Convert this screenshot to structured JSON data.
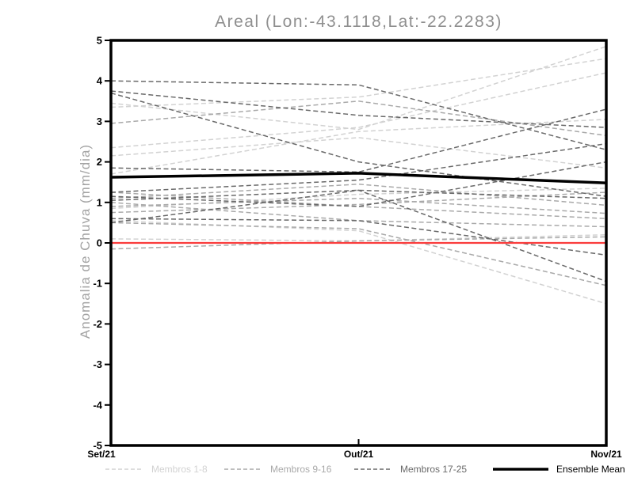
{
  "title": "Areal (Lon:-43.1118,Lat:-22.2283)",
  "chart_data": {
    "type": "line",
    "title": "Areal (Lon:-43.1118,Lat:-22.2283)",
    "xlabel": "",
    "ylabel": "Anomalia de Chuva (mm/dia)",
    "x_categories": [
      "Set/21",
      "Out/21",
      "Nov/21"
    ],
    "ylim": [
      -5,
      5
    ],
    "y_ticks": [
      5,
      4,
      3,
      2,
      1,
      0,
      -1,
      -2,
      -3,
      -4,
      -5
    ],
    "grid": false,
    "legend_position": "bottom",
    "zero_line": {
      "value": 0,
      "color": "#fa3c3c"
    },
    "groups": [
      {
        "name": "Membros 1-8",
        "color": "#d2d2d2",
        "style": "dashed",
        "members": [
          [
            3.45,
            2.8,
            4.85
          ],
          [
            3.35,
            3.6,
            4.55
          ],
          [
            2.35,
            2.85,
            4.2
          ],
          [
            2.15,
            2.6,
            1.85
          ],
          [
            1.7,
            2.75,
            3.05
          ],
          [
            0.85,
            1.2,
            1.35
          ],
          [
            0.55,
            0.3,
            -1.5
          ],
          [
            0.1,
            0.05,
            0.2
          ]
        ]
      },
      {
        "name": "Membros 9-16",
        "color": "#a9a9a9",
        "style": "dashed",
        "members": [
          [
            2.95,
            3.5,
            2.65
          ],
          [
            1.25,
            0.9,
            0.6
          ],
          [
            1.1,
            1.45,
            0.93
          ],
          [
            1.0,
            0.55,
            0.4
          ],
          [
            0.9,
            1.1,
            0.73
          ],
          [
            0.75,
            0.95,
            1.25
          ],
          [
            0.5,
            0.35,
            -1.05
          ],
          [
            -0.15,
            0.05,
            0.15
          ]
        ]
      },
      {
        "name": "Membros 17-25",
        "color": "#696969",
        "style": "dashed",
        "members": [
          [
            4.0,
            3.9,
            2.3
          ],
          [
            3.75,
            3.15,
            2.85
          ],
          [
            3.7,
            2.0,
            1.15
          ],
          [
            1.85,
            1.75,
            3.3
          ],
          [
            1.25,
            1.55,
            2.45
          ],
          [
            1.15,
            0.9,
            2.0
          ],
          [
            1.05,
            1.3,
            1.1
          ],
          [
            0.6,
            0.55,
            -0.3
          ],
          [
            0.5,
            1.3,
            -0.95
          ]
        ]
      }
    ],
    "ensemble_mean": {
      "name": "Ensemble Mean",
      "color": "#000000",
      "style": "solid",
      "values": [
        1.62,
        1.72,
        1.48
      ]
    }
  }
}
